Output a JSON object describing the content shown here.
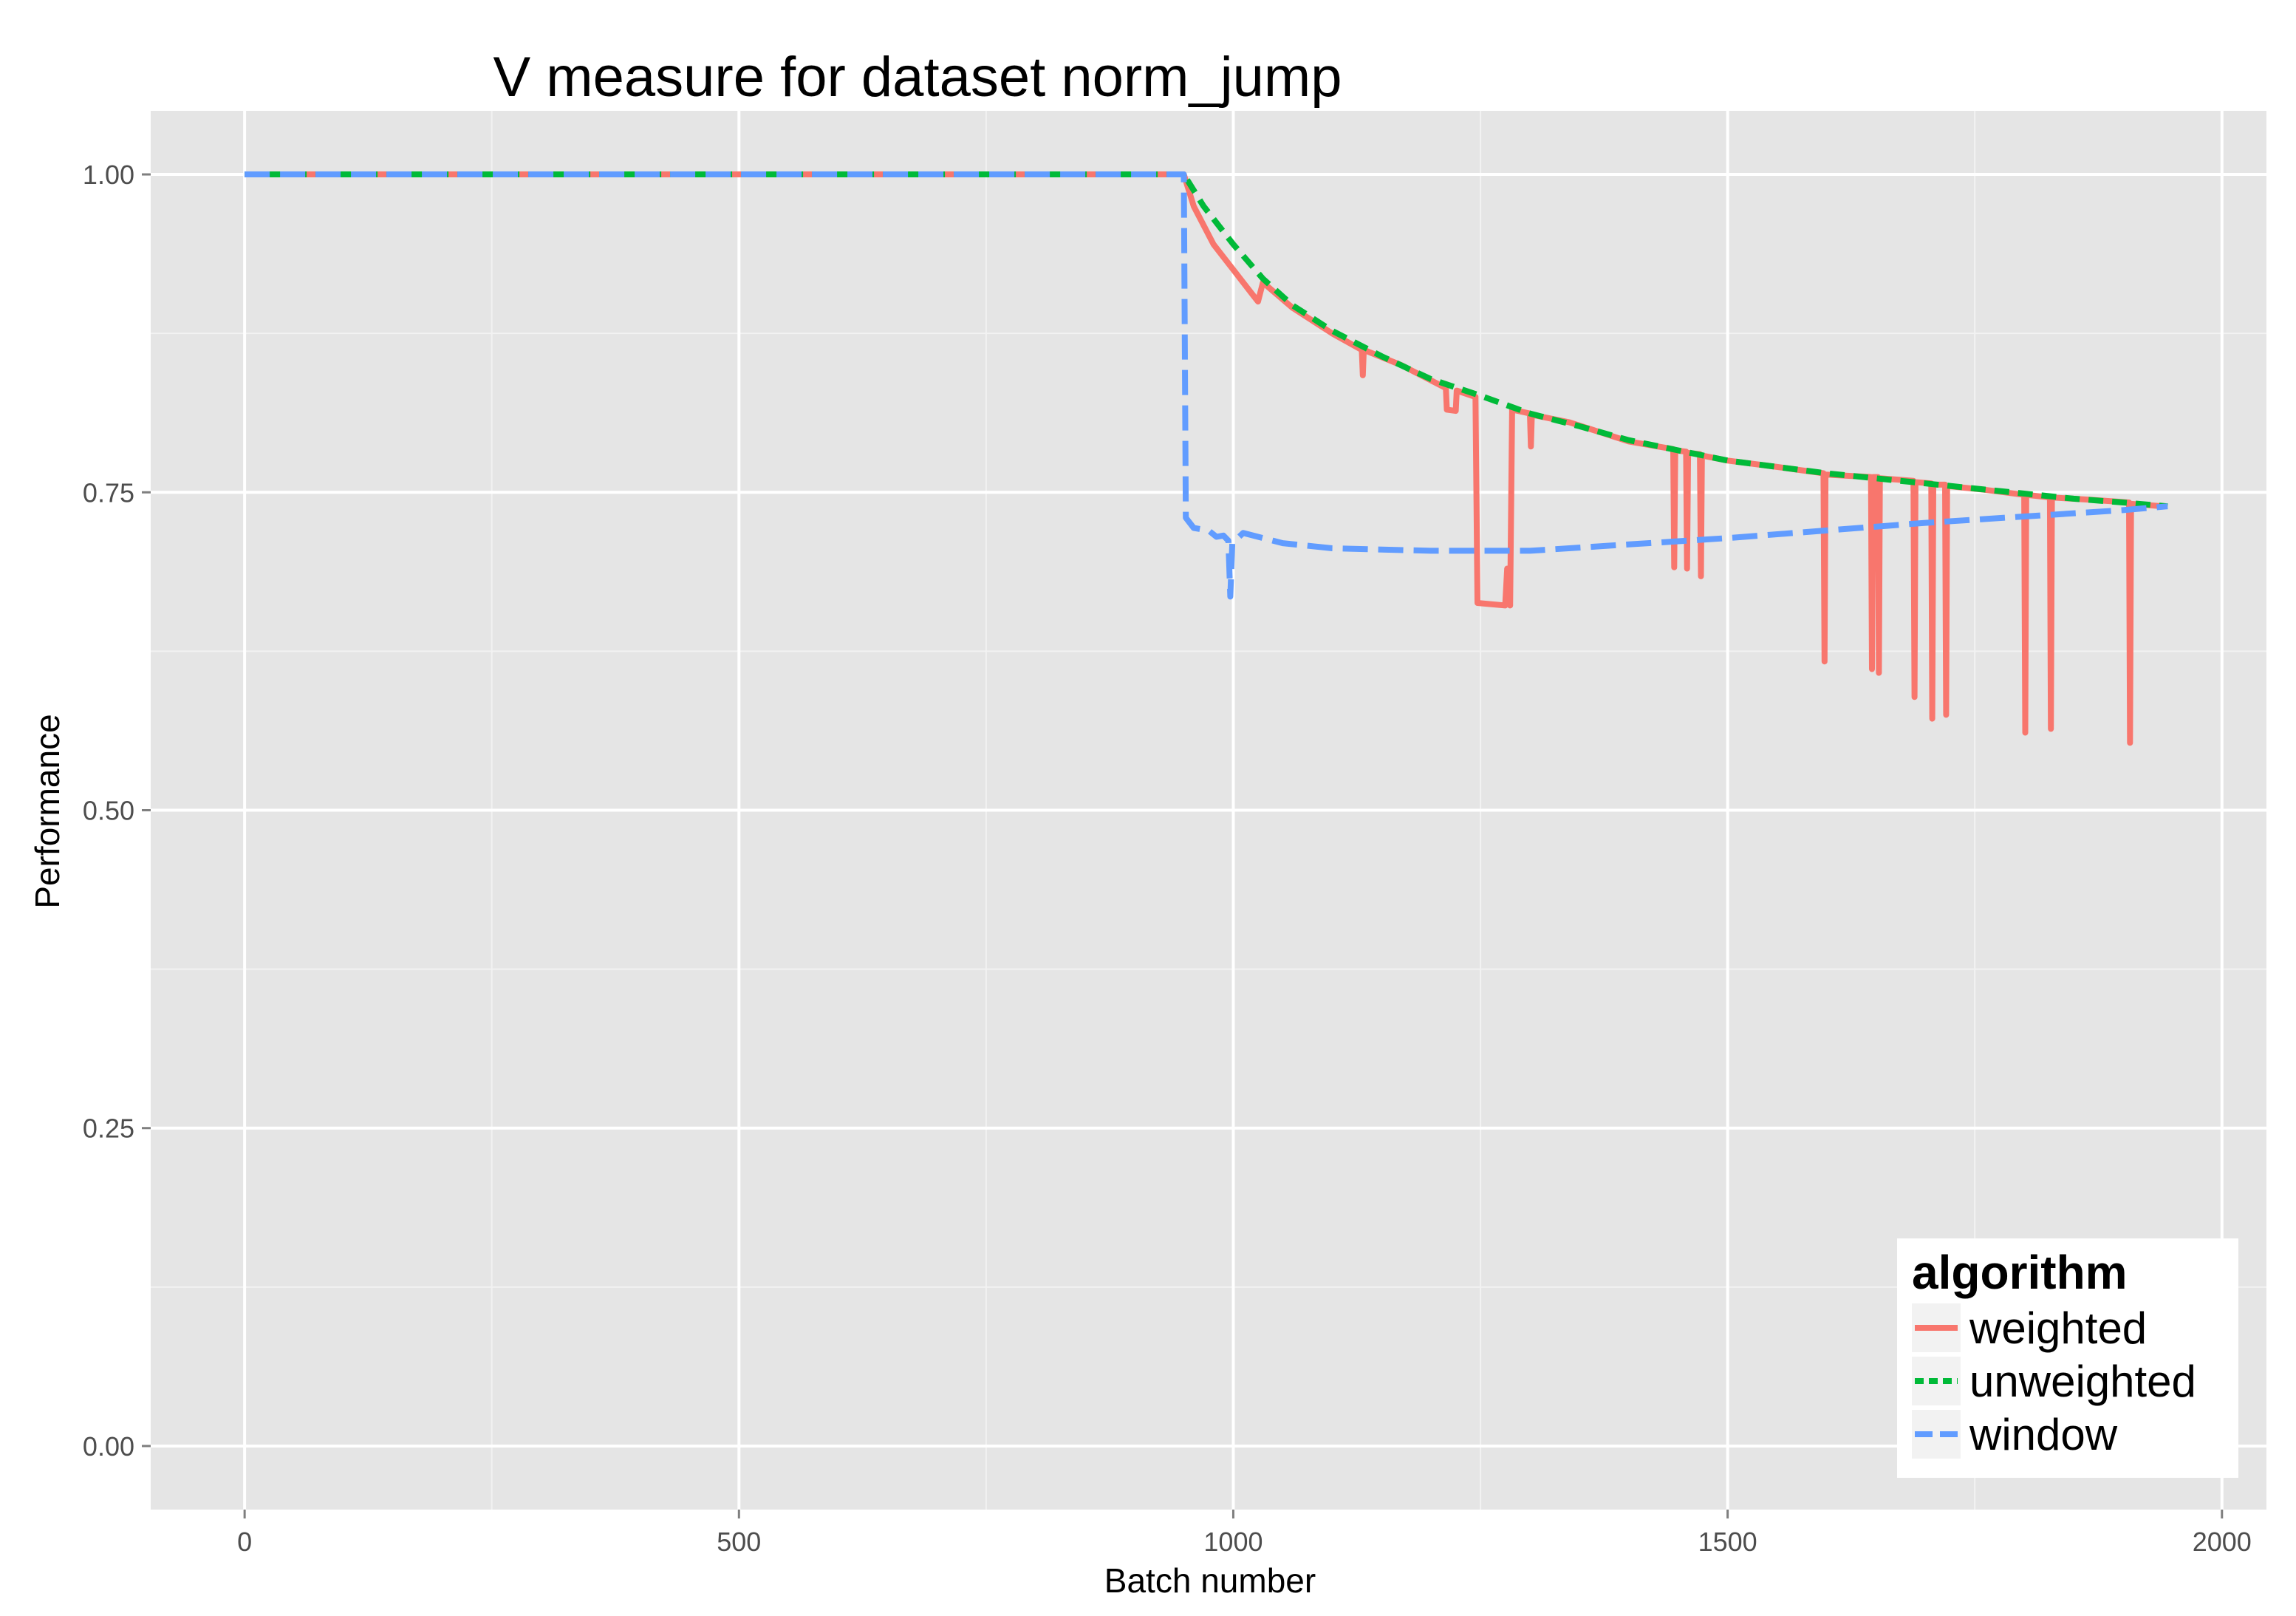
{
  "chart_data": {
    "type": "line",
    "title": "V measure for dataset norm_jump",
    "xlabel": "Batch number",
    "ylabel": "Performance",
    "xlim": [
      -95,
      2045
    ],
    "ylim": [
      -0.05,
      1.05
    ],
    "x_ticks": [
      0,
      500,
      1000,
      1500,
      2000
    ],
    "x_tick_labels": [
      "0",
      "500",
      "1000",
      "1500",
      "2000"
    ],
    "y_ticks": [
      0,
      0.25,
      0.5,
      0.75,
      1.0
    ],
    "y_tick_labels": [
      "0.00",
      "0.25",
      "0.50",
      "0.75",
      "1.00"
    ],
    "grid": true,
    "legend": {
      "title": "algorithm",
      "position": "bottom-right",
      "entries": [
        "weighted",
        "unweighted",
        "window"
      ]
    },
    "series": [
      {
        "name": "weighted",
        "color": "#F8766D",
        "dash": "solid",
        "points": [
          [
            0,
            1.0
          ],
          [
            950,
            1.0
          ],
          [
            960,
            0.975
          ],
          [
            980,
            0.945
          ],
          [
            1000,
            0.925
          ],
          [
            1020,
            0.905
          ],
          [
            1025,
            0.9
          ],
          [
            1030,
            0.915
          ],
          [
            1060,
            0.895
          ],
          [
            1100,
            0.875
          ],
          [
            1130,
            0.862
          ],
          [
            1131,
            0.842
          ],
          [
            1132,
            0.862
          ],
          [
            1170,
            0.85
          ],
          [
            1200,
            0.838
          ],
          [
            1215,
            0.832
          ],
          [
            1216,
            0.815
          ],
          [
            1225,
            0.814
          ],
          [
            1226,
            0.83
          ],
          [
            1245,
            0.825
          ],
          [
            1247,
            0.663
          ],
          [
            1275,
            0.661
          ],
          [
            1277,
            0.69
          ],
          [
            1280,
            0.661
          ],
          [
            1282,
            0.815
          ],
          [
            1300,
            0.812
          ],
          [
            1301,
            0.786
          ],
          [
            1302,
            0.811
          ],
          [
            1340,
            0.805
          ],
          [
            1400,
            0.79
          ],
          [
            1445,
            0.784
          ],
          [
            1446,
            0.691
          ],
          [
            1447,
            0.783
          ],
          [
            1458,
            0.782
          ],
          [
            1459,
            0.69
          ],
          [
            1460,
            0.781
          ],
          [
            1472,
            0.78
          ],
          [
            1473,
            0.684
          ],
          [
            1474,
            0.779
          ],
          [
            1500,
            0.775
          ],
          [
            1550,
            0.77
          ],
          [
            1597,
            0.765
          ],
          [
            1598,
            0.617
          ],
          [
            1599,
            0.764
          ],
          [
            1645,
            0.762
          ],
          [
            1646,
            0.611
          ],
          [
            1647,
            0.762
          ],
          [
            1652,
            0.762
          ],
          [
            1653,
            0.608
          ],
          [
            1654,
            0.761
          ],
          [
            1688,
            0.759
          ],
          [
            1689,
            0.589
          ],
          [
            1690,
            0.758
          ],
          [
            1706,
            0.757
          ],
          [
            1707,
            0.572
          ],
          [
            1708,
            0.756
          ],
          [
            1720,
            0.756
          ],
          [
            1721,
            0.575
          ],
          [
            1722,
            0.755
          ],
          [
            1760,
            0.752
          ],
          [
            1800,
            0.748
          ],
          [
            1801,
            0.561
          ],
          [
            1802,
            0.748
          ],
          [
            1826,
            0.746
          ],
          [
            1827,
            0.564
          ],
          [
            1828,
            0.746
          ],
          [
            1870,
            0.744
          ],
          [
            1906,
            0.742
          ],
          [
            1907,
            0.553
          ],
          [
            1908,
            0.741
          ],
          [
            1940,
            0.739
          ]
        ]
      },
      {
        "name": "unweighted",
        "color": "#00BA38",
        "dash": "dashed",
        "points": [
          [
            0,
            1.0
          ],
          [
            950,
            1.0
          ],
          [
            970,
            0.975
          ],
          [
            1000,
            0.945
          ],
          [
            1030,
            0.918
          ],
          [
            1060,
            0.897
          ],
          [
            1100,
            0.877
          ],
          [
            1150,
            0.857
          ],
          [
            1200,
            0.839
          ],
          [
            1250,
            0.826
          ],
          [
            1300,
            0.812
          ],
          [
            1350,
            0.802
          ],
          [
            1400,
            0.791
          ],
          [
            1450,
            0.783
          ],
          [
            1500,
            0.775
          ],
          [
            1550,
            0.77
          ],
          [
            1600,
            0.765
          ],
          [
            1650,
            0.761
          ],
          [
            1700,
            0.757
          ],
          [
            1750,
            0.753
          ],
          [
            1800,
            0.749
          ],
          [
            1850,
            0.745
          ],
          [
            1900,
            0.742
          ],
          [
            1945,
            0.739
          ]
        ]
      },
      {
        "name": "window",
        "color": "#619CFF",
        "dash": "longdash",
        "points": [
          [
            0,
            1.0
          ],
          [
            950,
            1.0
          ],
          [
            952,
            0.73
          ],
          [
            960,
            0.722
          ],
          [
            975,
            0.72
          ],
          [
            983,
            0.715
          ],
          [
            990,
            0.716
          ],
          [
            995,
            0.712
          ],
          [
            997,
            0.668
          ],
          [
            999,
            0.71
          ],
          [
            1010,
            0.718
          ],
          [
            1050,
            0.71
          ],
          [
            1100,
            0.706
          ],
          [
            1200,
            0.704
          ],
          [
            1300,
            0.704
          ],
          [
            1400,
            0.709
          ],
          [
            1500,
            0.714
          ],
          [
            1600,
            0.72
          ],
          [
            1700,
            0.726
          ],
          [
            1800,
            0.731
          ],
          [
            1900,
            0.736
          ],
          [
            1945,
            0.739
          ]
        ]
      }
    ]
  }
}
